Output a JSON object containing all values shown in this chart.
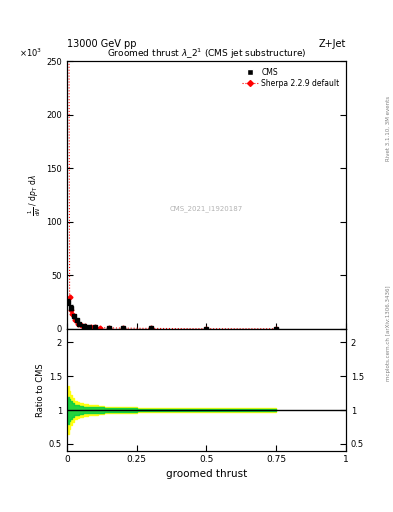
{
  "title_top": "13000 GeV pp",
  "title_top_right": "Z+Jet",
  "plot_title": "Groomed thrust $\\lambda\\_2^1$ (CMS jet substructure)",
  "xlabel": "groomed thrust",
  "ylabel_main": "$\\frac{1}{\\mathrm{d}N}$ / $\\mathrm{d}p_\\mathrm{T}$ $\\mathrm{d}\\lambda$",
  "ylabel_ratio": "Ratio to CMS",
  "right_label_top": "Rivet 3.1.10, 3M events",
  "right_label_bottom": "mcplots.cern.ch [arXiv:1306.3436]",
  "watermark": "CMS_2021_I1920187",
  "legend_cms": "CMS",
  "legend_sherpa": "Sherpa 2.2.9 default",
  "scale_factor": "×10³",
  "cms_x": [
    0.005,
    0.015,
    0.025,
    0.035,
    0.045,
    0.06,
    0.08,
    0.1,
    0.15,
    0.2,
    0.3,
    0.5,
    0.75
  ],
  "cms_y": [
    25,
    20,
    12,
    8,
    5,
    3,
    2,
    1.5,
    1,
    0.8,
    0.5,
    0.2,
    0.15
  ],
  "cms_yerr": [
    3,
    2,
    1.5,
    1,
    0.7,
    0.4,
    0.3,
    0.2,
    0.15,
    0.1,
    0.08,
    0.04,
    0.03
  ],
  "sherpa_x": [
    0.005,
    0.01,
    0.015,
    0.02,
    0.03,
    0.04,
    0.05,
    0.065,
    0.085,
    0.1,
    0.12,
    0.15,
    0.2,
    0.3,
    0.5,
    0.75
  ],
  "sherpa_y": [
    570,
    30,
    18,
    14,
    8,
    5,
    3.5,
    2.5,
    1.8,
    1.5,
    1.2,
    1.0,
    0.8,
    0.5,
    0.2,
    0.15
  ],
  "ylim_main": [
    0,
    250
  ],
  "ylim_ratio": [
    0.4,
    2.2
  ],
  "xlim": [
    0,
    1
  ],
  "ratio_band_yellow_lo": [
    0.65,
    0.72,
    0.78,
    0.82,
    0.87,
    0.88,
    0.9,
    0.91,
    0.92,
    0.93,
    0.94,
    0.95,
    0.96,
    0.97,
    0.97,
    0.97
  ],
  "ratio_band_yellow_hi": [
    1.35,
    1.28,
    1.22,
    1.18,
    1.13,
    1.12,
    1.1,
    1.09,
    1.08,
    1.07,
    1.06,
    1.05,
    1.04,
    1.03,
    1.03,
    1.03
  ],
  "ratio_band_green_lo": [
    0.8,
    0.84,
    0.87,
    0.89,
    0.92,
    0.93,
    0.94,
    0.95,
    0.95,
    0.96,
    0.96,
    0.97,
    0.97,
    0.98,
    0.98,
    0.98
  ],
  "ratio_band_green_hi": [
    1.2,
    1.16,
    1.13,
    1.11,
    1.08,
    1.07,
    1.06,
    1.05,
    1.05,
    1.04,
    1.04,
    1.03,
    1.03,
    1.02,
    1.02,
    1.02
  ],
  "ratio_x": [
    0.005,
    0.01,
    0.015,
    0.02,
    0.03,
    0.04,
    0.05,
    0.065,
    0.085,
    0.1,
    0.12,
    0.15,
    0.2,
    0.3,
    0.5,
    0.75
  ],
  "color_cms": "#000000",
  "color_sherpa": "#ff0000",
  "color_yellow": "#ffff00",
  "color_green": "#00cc44",
  "background_color": "#ffffff"
}
